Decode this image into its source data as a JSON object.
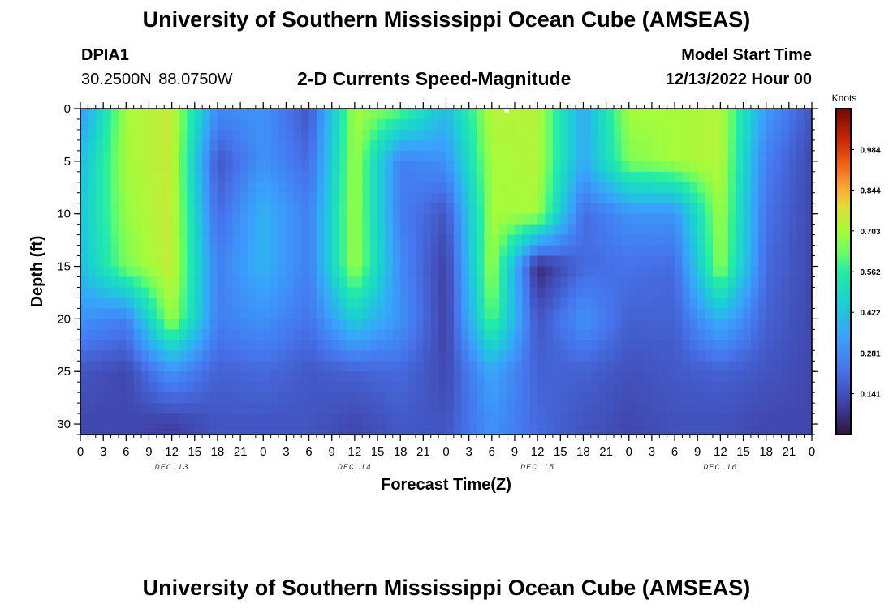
{
  "page": {
    "title": "University of Southern Mississippi Ocean Cube (AMSEAS)",
    "footer_title": "University of Southern Mississippi Ocean Cube (AMSEAS)",
    "station_id": "DPIA1",
    "station_coords": "30.2500N  88.0750W",
    "chart_title": "2-D Currents Speed-Magnitude",
    "model_start_label": "Model Start Time",
    "model_start_value": "12/13/2022 Hour 00"
  },
  "chart_data": {
    "type": "heatmap",
    "title": "2-D Currents Speed-Magnitude",
    "xlabel": "Forecast Time(Z)",
    "ylabel": "Depth (ft)",
    "xlim": [
      0,
      96
    ],
    "ylim": [
      0,
      31
    ],
    "x_ticks": [
      0,
      3,
      6,
      9,
      12,
      15,
      18,
      21,
      24,
      27,
      30,
      33,
      36,
      39,
      42,
      45,
      48,
      51,
      54,
      57,
      60,
      63,
      66,
      69,
      72,
      75,
      78,
      81,
      84,
      87,
      90,
      93,
      96
    ],
    "x_tick_labels": [
      "0",
      "3",
      "6",
      "9",
      "12",
      "15",
      "18",
      "21",
      "0",
      "3",
      "6",
      "9",
      "12",
      "15",
      "18",
      "21",
      "0",
      "3",
      "6",
      "9",
      "12",
      "15",
      "18",
      "21",
      "0",
      "3",
      "6",
      "9",
      "12",
      "15",
      "18",
      "21",
      "0"
    ],
    "y_ticks": [
      0,
      5,
      10,
      15,
      20,
      25,
      30
    ],
    "y_tick_labels": [
      "0",
      "5",
      "10",
      "15",
      "20",
      "25",
      "30"
    ],
    "date_labels": [
      {
        "hour": 12,
        "label": "DEC 13"
      },
      {
        "hour": 36,
        "label": "DEC 14"
      },
      {
        "hour": 60,
        "label": "DEC 15"
      },
      {
        "hour": 84,
        "label": "DEC 16"
      }
    ],
    "colorbar": {
      "unit": "Knots",
      "vmin": 0.0,
      "vmax": 1.125,
      "tick_values": [
        0.141,
        0.281,
        0.422,
        0.562,
        0.703,
        0.844,
        0.984
      ],
      "tick_labels": [
        "0.141",
        "0.281",
        "0.422",
        "0.562",
        "0.703",
        "0.844",
        "0.984"
      ]
    },
    "depth_levels_ft": [
      0,
      5,
      10,
      15,
      20,
      25,
      30
    ],
    "speed_hours": [
      0,
      6,
      12,
      18,
      24,
      30,
      36,
      42,
      48,
      54,
      60,
      66,
      72,
      78,
      84,
      90,
      96
    ],
    "speed_profiles_knots": [
      {
        "hour": 0,
        "values": [
          0.3,
          0.4,
          0.42,
          0.4,
          0.3,
          0.15,
          0.12
        ]
      },
      {
        "hour": 6,
        "values": [
          0.7,
          0.7,
          0.68,
          0.65,
          0.25,
          0.12,
          0.12
        ]
      },
      {
        "hour": 12,
        "values": [
          0.75,
          0.75,
          0.75,
          0.75,
          0.7,
          0.3,
          0.1
        ]
      },
      {
        "hour": 18,
        "values": [
          0.28,
          0.15,
          0.2,
          0.25,
          0.25,
          0.18,
          0.15
        ]
      },
      {
        "hour": 24,
        "values": [
          0.3,
          0.3,
          0.38,
          0.38,
          0.3,
          0.2,
          0.15
        ]
      },
      {
        "hour": 30,
        "values": [
          0.15,
          0.2,
          0.25,
          0.25,
          0.22,
          0.16,
          0.15
        ]
      },
      {
        "hour": 36,
        "values": [
          0.7,
          0.7,
          0.7,
          0.7,
          0.45,
          0.18,
          0.12
        ]
      },
      {
        "hour": 42,
        "values": [
          0.62,
          0.25,
          0.25,
          0.28,
          0.3,
          0.2,
          0.16
        ]
      },
      {
        "hour": 48,
        "values": [
          0.4,
          0.3,
          0.15,
          0.1,
          0.1,
          0.12,
          0.15
        ]
      },
      {
        "hour": 54,
        "values": [
          0.72,
          0.7,
          0.7,
          0.7,
          0.62,
          0.35,
          0.3
        ]
      },
      {
        "hour": 60,
        "values": [
          0.72,
          0.72,
          0.7,
          0.05,
          0.15,
          0.18,
          0.2
        ]
      },
      {
        "hour": 66,
        "values": [
          0.35,
          0.35,
          0.2,
          0.2,
          0.3,
          0.18,
          0.15
        ]
      },
      {
        "hour": 72,
        "values": [
          0.7,
          0.65,
          0.3,
          0.22,
          0.18,
          0.14,
          0.12
        ]
      },
      {
        "hour": 78,
        "values": [
          0.7,
          0.7,
          0.3,
          0.2,
          0.18,
          0.16,
          0.14
        ]
      },
      {
        "hour": 84,
        "values": [
          0.72,
          0.72,
          0.7,
          0.68,
          0.38,
          0.18,
          0.14
        ]
      },
      {
        "hour": 90,
        "values": [
          0.32,
          0.25,
          0.22,
          0.2,
          0.18,
          0.15,
          0.12
        ]
      },
      {
        "hour": 96,
        "values": [
          0.15,
          0.12,
          0.12,
          0.12,
          0.12,
          0.12,
          0.12
        ]
      }
    ],
    "missing_marker": {
      "hour": 56,
      "depth": 0
    }
  }
}
